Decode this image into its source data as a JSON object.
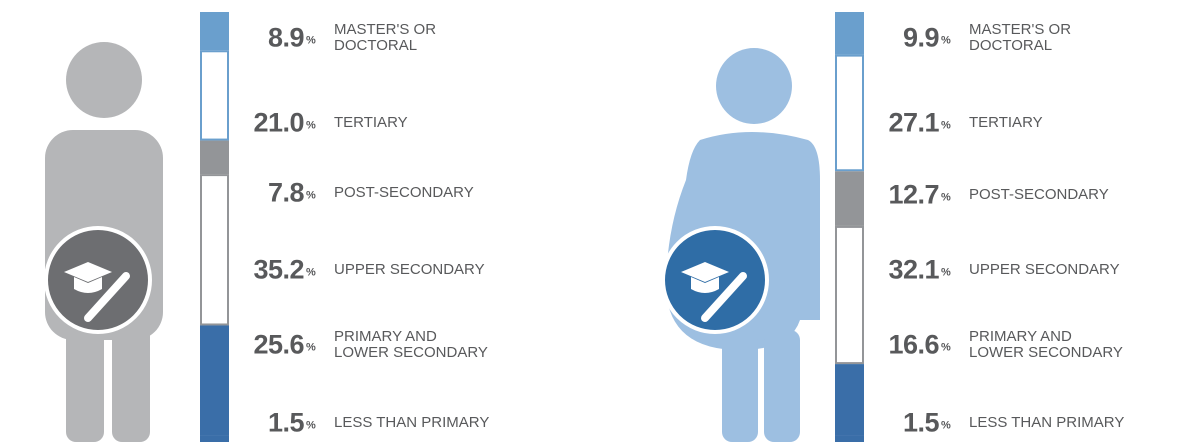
{
  "chart_data": [
    {
      "type": "bar",
      "stacked": true,
      "categories": [
        "MASTER'S OR\nDOCTORAL",
        "TERTIARY",
        "POST-SECONDARY",
        "UPPER SECONDARY",
        "PRIMARY AND\nLOWER SECONDARY",
        "LESS THAN PRIMARY"
      ],
      "values": [
        8.9,
        21.0,
        7.8,
        35.2,
        25.6,
        1.5
      ],
      "value_labels": [
        "8.9",
        "21.0",
        "7.8",
        "35.2",
        "25.6",
        "1.5"
      ],
      "unit": "%",
      "colors": [
        "#6a9fcd",
        "#ffffff",
        "#939598",
        "#ffffff",
        "#3a6ea8",
        "#3a6ea8"
      ],
      "edgecolors": [
        "#6a9fcd",
        "#6a9fcd",
        "#939598",
        "#939598",
        "#3a6ea8",
        "#3a6ea8"
      ]
    },
    {
      "type": "bar",
      "stacked": true,
      "categories": [
        "MASTER'S OR\nDOCTORAL",
        "TERTIARY",
        "POST-SECONDARY",
        "UPPER SECONDARY",
        "PRIMARY AND\nLOWER SECONDARY",
        "LESS THAN PRIMARY"
      ],
      "values": [
        9.9,
        27.1,
        12.7,
        32.1,
        16.6,
        1.5
      ],
      "value_labels": [
        "9.9",
        "27.1",
        "12.7",
        "32.1",
        "16.6",
        "1.5"
      ],
      "unit": "%",
      "colors": [
        "#6a9fcd",
        "#ffffff",
        "#939598",
        "#ffffff",
        "#3a6ea8",
        "#3a6ea8"
      ],
      "edgecolors": [
        "#6a9fcd",
        "#6a9fcd",
        "#939598",
        "#939598",
        "#3a6ea8",
        "#3a6ea8"
      ]
    }
  ]
}
